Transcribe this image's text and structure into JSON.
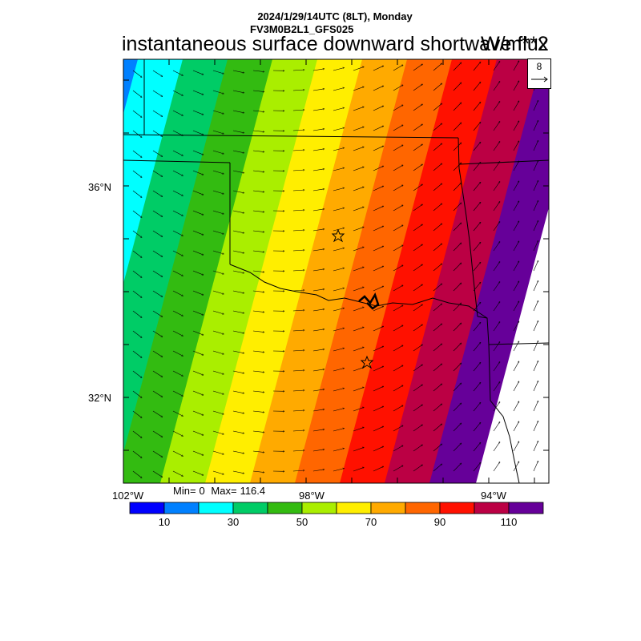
{
  "header": {
    "datetime": "2024/1/29/14UTC (8LT), Monday",
    "model": "FV3M0B2L1_GFS025",
    "title": "instantaneous surface downward shortwave flux",
    "units": "W/m**2"
  },
  "axes": {
    "lat_labels": [
      "36°N",
      "32°N"
    ],
    "lon_labels": [
      "102°W",
      "98°W",
      "94°W"
    ]
  },
  "stats": {
    "min_label": "Min=",
    "min": "0",
    "max_label": "Max=",
    "max": "116.4"
  },
  "vector_ref": {
    "value": "8"
  },
  "colorbar": {
    "colors": [
      "#0000ff",
      "#0080ff",
      "#00ffff",
      "#00cc66",
      "#33bb11",
      "#aaee00",
      "#ffee00",
      "#ffaa00",
      "#ff6600",
      "#ff1100",
      "#bb0044",
      "#660099"
    ],
    "levels": [
      0,
      10,
      20,
      30,
      40,
      50,
      60,
      70,
      80,
      90,
      100,
      110,
      120
    ],
    "tick_labels": [
      "10",
      "30",
      "50",
      "70",
      "90",
      "110"
    ]
  },
  "markers": {
    "stations": 2
  }
}
